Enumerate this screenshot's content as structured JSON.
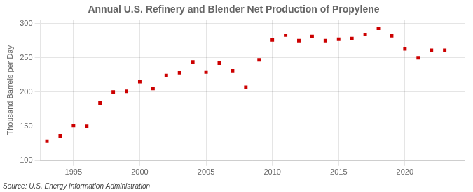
{
  "chart_data": {
    "type": "scatter",
    "title": "Annual U.S. Refinery and Blender Net Production of Propylene",
    "ylabel": "Thousand Barrels per Day",
    "annotations": [
      "Source: U.S. Energy Information Administration"
    ],
    "x": [
      1993,
      1994,
      1995,
      1996,
      1997,
      1998,
      1999,
      2000,
      2001,
      2002,
      2003,
      2004,
      2005,
      2006,
      2007,
      2008,
      2009,
      2010,
      2011,
      2012,
      2013,
      2014,
      2015,
      2016,
      2017,
      2018,
      2019,
      2020,
      2021,
      2022,
      2023
    ],
    "values": [
      128,
      136,
      151,
      150,
      184,
      200,
      201,
      215,
      205,
      224,
      228,
      244,
      229,
      242,
      231,
      207,
      247,
      276,
      283,
      275,
      281,
      275,
      277,
      278,
      284,
      293,
      282,
      263,
      250,
      261,
      261
    ],
    "color": "#CC0000",
    "marker": "square",
    "xlim": [
      1992.5,
      2024.5
    ],
    "ylim": [
      100,
      305
    ],
    "xticks": [
      1995,
      2000,
      2005,
      2010,
      2015,
      2020
    ],
    "yticks": [
      100,
      150,
      200,
      250,
      300
    ],
    "grid": true
  }
}
